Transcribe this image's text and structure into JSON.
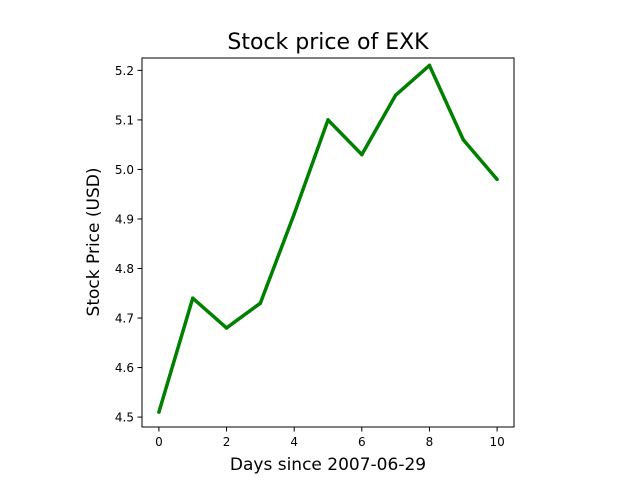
{
  "chart_data": {
    "type": "line",
    "title": "Stock price of EXK",
    "xlabel": "Days since 2007-06-29",
    "ylabel": "Stock Price (USD)",
    "x": [
      0,
      1,
      2,
      3,
      4,
      5,
      6,
      7,
      8,
      9,
      10
    ],
    "series": [
      {
        "values": [
          4.51,
          4.74,
          4.68,
          4.73,
          4.91,
          5.1,
          5.03,
          5.15,
          5.21,
          5.06,
          4.98
        ],
        "color": "#008000"
      }
    ],
    "xlim": [
      -0.5,
      10.5
    ],
    "ylim": [
      4.48,
      5.225
    ],
    "xticks": [
      0,
      2,
      4,
      6,
      8,
      10
    ],
    "xtick_labels": [
      "0",
      "2",
      "4",
      "6",
      "8",
      "10"
    ],
    "yticks": [
      4.5,
      4.6,
      4.7,
      4.8,
      4.9,
      5.0,
      5.1,
      5.2
    ],
    "ytick_labels": [
      "4.5",
      "4.6",
      "4.7",
      "4.8",
      "4.9",
      "5.0",
      "5.1",
      "5.2"
    ],
    "grid": false,
    "legend": false
  }
}
